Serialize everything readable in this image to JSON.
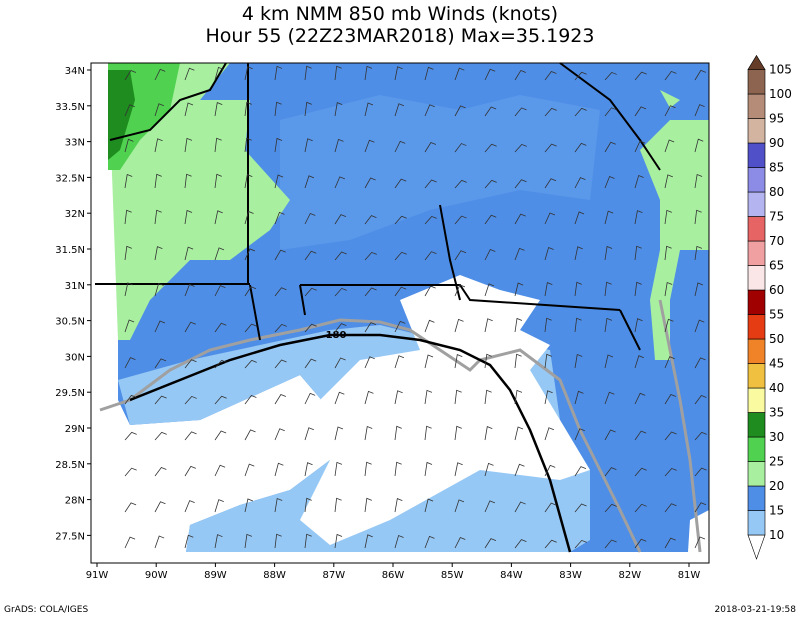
{
  "title": [
    "4 km NMM 850 mb Winds (knots)",
    "Hour 55 (22Z23MAR2018) Max=35.1923"
  ],
  "map": {
    "lon_labels": [
      "91W",
      "90W",
      "89W",
      "88W",
      "87W",
      "86W",
      "85W",
      "84W",
      "83W",
      "82W",
      "81W"
    ],
    "lat_labels": [
      "34N",
      "33.5N",
      "33N",
      "32.5N",
      "32N",
      "31.5N",
      "31N",
      "30.5N",
      "30N",
      "29.5N",
      "29N",
      "28.5N",
      "28N",
      "27.5N"
    ],
    "contour_label": "180"
  },
  "colorbar": {
    "levels": [
      10,
      15,
      20,
      25,
      30,
      35,
      40,
      45,
      50,
      55,
      60,
      65,
      70,
      75,
      80,
      85,
      90,
      95,
      100,
      105
    ],
    "colors": [
      "#ffffff",
      "#96c8f5",
      "#4f8ee6",
      "#a8f0a0",
      "#50d250",
      "#1e8c1e",
      "#fafaa0",
      "#f0c040",
      "#f08228",
      "#e63c14",
      "#a00000",
      "#fae6e6",
      "#f0a0a0",
      "#e66464",
      "#b4b4f0",
      "#8c8ce6",
      "#5050c8",
      "#d2b4a0",
      "#b48c78",
      "#8c6450",
      "#643c28"
    ]
  },
  "footer": {
    "left": "GrADS: COLA/IGES",
    "right": "2018-03-21-19:58"
  }
}
